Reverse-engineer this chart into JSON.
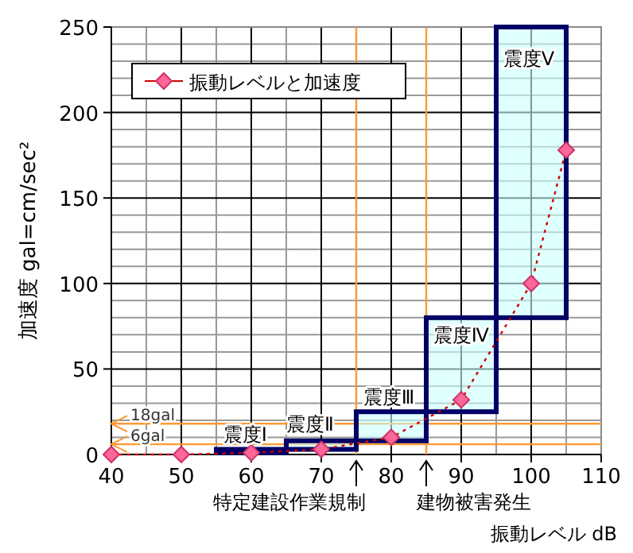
{
  "chart_data": {
    "type": "line",
    "xlabel": "振動レベル dB",
    "ylabel": "加速度 gal=cm/sec²",
    "xlim": [
      40,
      110
    ],
    "ylim": [
      0,
      250
    ],
    "xticks": [
      40,
      50,
      60,
      70,
      80,
      90,
      100,
      110
    ],
    "yticks": [
      0,
      50,
      100,
      150,
      200,
      250
    ],
    "grid": true,
    "legend": "top left",
    "series": [
      {
        "type": "bar",
        "color": "#ccffff",
        "x": [
          60,
          70,
          80,
          90,
          100
        ],
        "base": [
          1,
          3,
          8,
          25,
          80
        ],
        "values": [
          2,
          5,
          17,
          55,
          170
        ]
      },
      {
        "name": "振動レベルと加速度",
        "color": "#ff6699",
        "marker": "diamond",
        "line_style": "dotted",
        "x": [
          40,
          50,
          60,
          70,
          80,
          90,
          100,
          105
        ],
        "values": [
          0,
          0,
          1,
          3,
          10,
          32,
          100,
          178
        ]
      }
    ],
    "ref_lines": [
      {
        "axis": "y",
        "value": 18,
        "label": "18gal",
        "color": "#ff9933"
      },
      {
        "axis": "y",
        "value": 6,
        "label": "6gal",
        "color": "#ff9933"
      },
      {
        "axis": "x",
        "value": 75,
        "label": "特定建設作業規制",
        "color": "#ff9933"
      },
      {
        "axis": "x",
        "value": 85,
        "label": "建物被害発生",
        "color": "#ff9933"
      }
    ],
    "annotations": [
      {
        "text": "震度Ⅰ",
        "x": 56,
        "y": 5
      },
      {
        "text": "震度Ⅱ",
        "x": 65,
        "y": 11
      },
      {
        "text": "震度Ⅲ",
        "x": 76,
        "y": 27
      },
      {
        "text": "震度Ⅳ",
        "x": 86,
        "y": 63
      },
      {
        "text": "震度Ⅴ",
        "x": 96,
        "y": 225
      }
    ]
  }
}
